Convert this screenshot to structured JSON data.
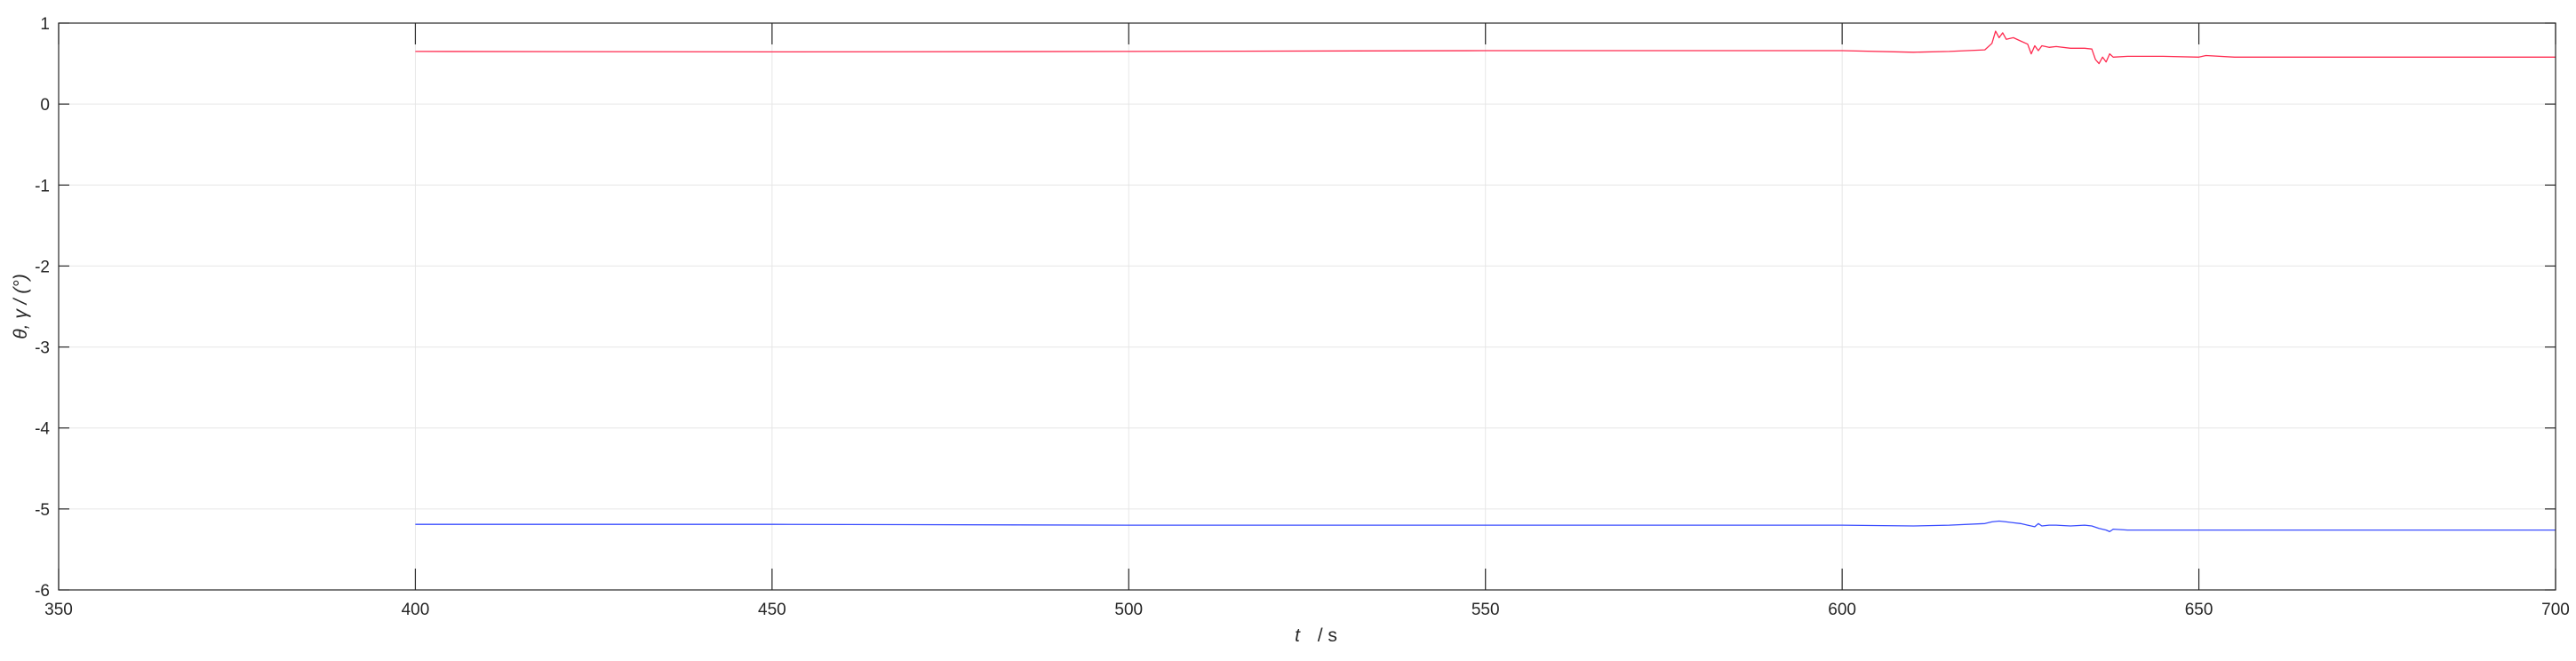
{
  "chart_data": {
    "type": "line",
    "title": "",
    "xlabel_var": "t",
    "xlabel_unit": "/ s",
    "ylabel": "θ, γ / (°)",
    "xlim": [
      350,
      700
    ],
    "ylim": [
      -6,
      1
    ],
    "xticks": [
      350,
      400,
      450,
      500,
      550,
      600,
      650,
      700
    ],
    "yticks": [
      1,
      0,
      -1,
      -2,
      -3,
      -4,
      -5,
      -6
    ],
    "grid": true,
    "series": [
      {
        "color": "#ff2a4f",
        "x": [
          400,
          450,
          500,
          550,
          600,
          610,
          615,
          620,
          621,
          621.5,
          622,
          622.5,
          623,
          624,
          625,
          626,
          626.5,
          627,
          627.5,
          628,
          629,
          630,
          632,
          634,
          635,
          635.5,
          636,
          636.5,
          637,
          637.5,
          638,
          640,
          645,
          650,
          651,
          655,
          660,
          670,
          680,
          690,
          700
        ],
        "y": [
          0.65,
          0.645,
          0.65,
          0.66,
          0.66,
          0.64,
          0.65,
          0.67,
          0.75,
          0.9,
          0.82,
          0.88,
          0.8,
          0.82,
          0.78,
          0.74,
          0.62,
          0.72,
          0.66,
          0.72,
          0.7,
          0.71,
          0.69,
          0.69,
          0.68,
          0.55,
          0.5,
          0.58,
          0.52,
          0.62,
          0.58,
          0.59,
          0.59,
          0.58,
          0.6,
          0.58,
          0.58,
          0.58,
          0.58,
          0.58,
          0.58
        ]
      },
      {
        "color": "#3a4dff",
        "x": [
          400,
          450,
          500,
          550,
          600,
          610,
          615,
          620,
          621,
          622,
          623,
          624,
          625,
          626,
          627,
          627.5,
          628,
          629,
          630,
          632,
          634,
          635,
          636,
          637,
          637.5,
          638,
          640,
          645,
          650,
          660,
          670,
          680,
          690,
          700
        ],
        "y": [
          -5.19,
          -5.19,
          -5.2,
          -5.2,
          -5.2,
          -5.21,
          -5.2,
          -5.18,
          -5.16,
          -5.15,
          -5.16,
          -5.17,
          -5.18,
          -5.2,
          -5.22,
          -5.18,
          -5.21,
          -5.2,
          -5.2,
          -5.21,
          -5.2,
          -5.21,
          -5.24,
          -5.26,
          -5.28,
          -5.25,
          -5.26,
          -5.26,
          -5.26,
          -5.26,
          -5.26,
          -5.26,
          -5.26,
          -5.26
        ]
      }
    ]
  }
}
